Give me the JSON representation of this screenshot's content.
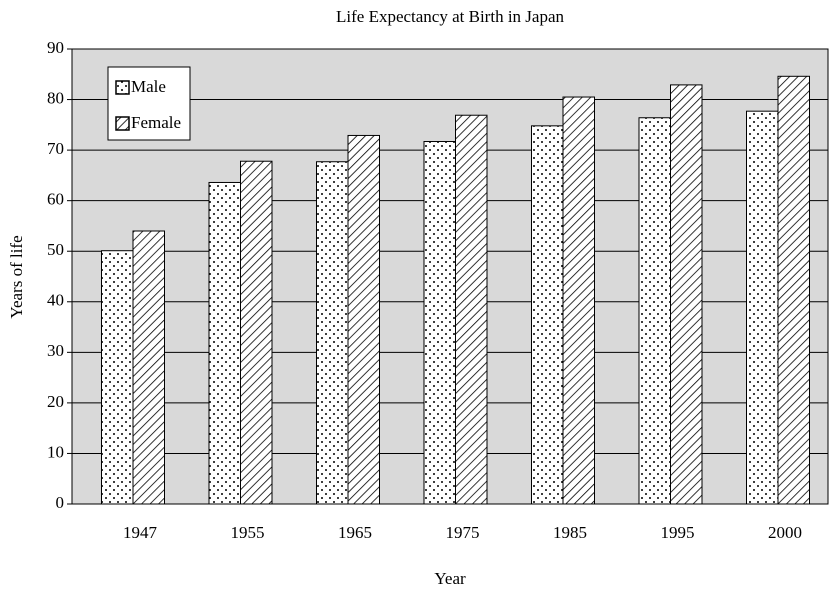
{
  "chart_data": {
    "type": "bar",
    "title": "Life Expectancy at Birth in Japan",
    "x_label": "Year",
    "y_label": "Years of life",
    "categories": [
      "1947",
      "1955",
      "1965",
      "1975",
      "1985",
      "1995",
      "2000"
    ],
    "series": [
      {
        "name": "Male",
        "pattern": "dots",
        "values": [
          50.1,
          63.6,
          67.7,
          71.7,
          74.8,
          76.4,
          77.7
        ]
      },
      {
        "name": "Female",
        "pattern": "hatch",
        "values": [
          54.0,
          67.8,
          72.9,
          76.9,
          80.5,
          82.9,
          84.6
        ]
      }
    ],
    "ylim": [
      0,
      90
    ],
    "yticks": [
      0,
      10,
      20,
      30,
      40,
      50,
      60,
      70,
      80,
      90
    ],
    "grid": true,
    "legend": "top-left"
  }
}
